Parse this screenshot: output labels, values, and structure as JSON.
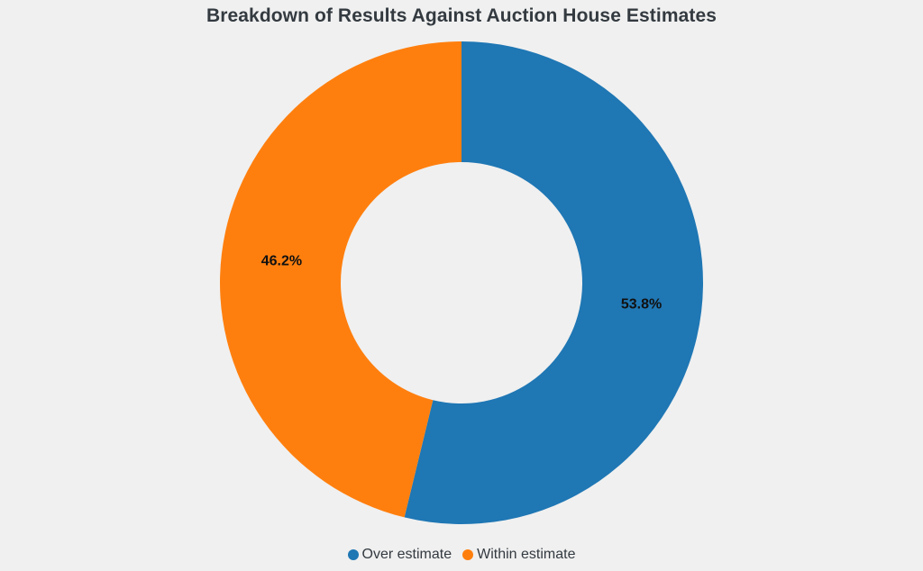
{
  "chart_data": {
    "type": "pie",
    "title": "Breakdown of Results Against Auction House Estimates",
    "donut": true,
    "legend_position": "bottom",
    "categories": [
      "Over estimate",
      "Within estimate"
    ],
    "values": [
      53.8,
      46.2
    ],
    "data_labels": [
      "53.8%",
      "46.2%"
    ],
    "colors": [
      "#1f77b4",
      "#ff7f0e"
    ]
  }
}
